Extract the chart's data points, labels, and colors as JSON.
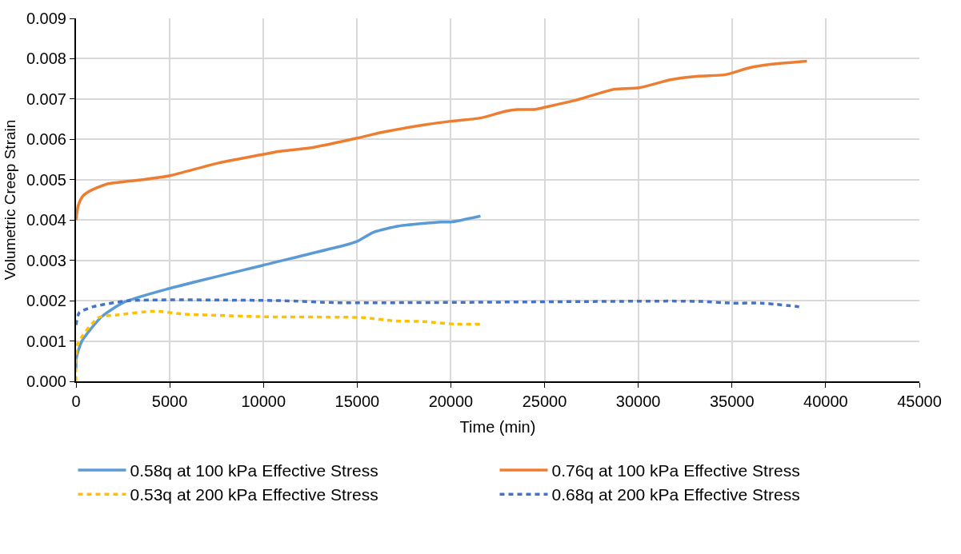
{
  "chart_data": {
    "type": "line",
    "xlabel": "Time (min)",
    "ylabel": "Volumetric Creep Strain",
    "xlim": [
      0,
      45000
    ],
    "xticks": [
      0,
      5000,
      10000,
      15000,
      20000,
      25000,
      30000,
      35000,
      40000,
      45000
    ],
    "ylim": [
      0,
      0.009
    ],
    "yticks": [
      {
        "value": 0,
        "label": "0.000"
      },
      {
        "value": 0.001,
        "label": "0.001"
      },
      {
        "value": 0.002,
        "label": "0.002"
      },
      {
        "value": 0.003,
        "label": "0.003"
      },
      {
        "value": 0.004,
        "label": "0.004"
      },
      {
        "value": 0.005,
        "label": "0.005"
      },
      {
        "value": 0.006,
        "label": "0.006"
      },
      {
        "value": 0.007,
        "label": "0.007"
      },
      {
        "value": 0.008,
        "label": "0.008"
      },
      {
        "value": 0.009,
        "label": "0.009"
      }
    ],
    "grid": true,
    "legend": "bottom",
    "marker": "none",
    "series": [
      {
        "name": "0.58q at 100 kPa Effective Stress",
        "color": "#5b9bd5",
        "line_style": "solid",
        "x": [
          0,
          30,
          315,
          1365,
          2550,
          4960,
          9990,
          14540,
          15000,
          15890,
          17230,
          19470,
          20000,
          21580
        ],
        "values": [
          0.0003,
          0.0006,
          0.001,
          0.0016,
          0.00196,
          0.0023,
          0.00288,
          0.0034,
          0.00347,
          0.0037,
          0.00385,
          0.00395,
          0.00395,
          0.0041
        ]
      },
      {
        "name": "0.76q at 100 kPa Effective Stress",
        "color": "#ed7d31",
        "line_style": "solid",
        "x": [
          0,
          120,
          360,
          820,
          1730,
          3550,
          5000,
          7480,
          10000,
          10800,
          12640,
          15000,
          16270,
          18700,
          20000,
          21570,
          22940,
          23540,
          24450,
          25060,
          26570,
          28690,
          30060,
          31720,
          33240,
          34600,
          35970,
          37030,
          39000
        ],
        "values": [
          0.004,
          0.00436,
          0.00459,
          0.00474,
          0.0049,
          0.005,
          0.0051,
          0.0054,
          0.00563,
          0.0057,
          0.0058,
          0.00603,
          0.00617,
          0.00637,
          0.00645,
          0.00653,
          0.0067,
          0.00674,
          0.00674,
          0.0068,
          0.00696,
          0.00724,
          0.00728,
          0.00748,
          0.00757,
          0.0076,
          0.00778,
          0.00786,
          0.00794
        ]
      },
      {
        "name": "0.53q at 200 kPa Effective Stress",
        "color": "#ffc000",
        "line_style": "dashed",
        "x": [
          0,
          90,
          1210,
          2260,
          4210,
          5710,
          10200,
          15290,
          16950,
          18600,
          20200,
          21580
        ],
        "values": [
          0,
          0.00093,
          0.00158,
          0.00165,
          0.00174,
          0.00167,
          0.0016,
          0.00158,
          0.0015,
          0.00148,
          0.00142,
          0.00142
        ]
      },
      {
        "name": "0.68q at 200 kPa Effective Stress",
        "color": "#4472c4",
        "line_style": "dashed",
        "x": [
          0,
          170,
          915,
          2860,
          10950,
          14000,
          31850,
          33420,
          35000,
          36560,
          38580
        ],
        "values": [
          0.0014,
          0.0017,
          0.00185,
          0.002,
          0.002,
          0.00195,
          0.00199,
          0.00198,
          0.00194,
          0.00194,
          0.00185
        ]
      }
    ]
  }
}
